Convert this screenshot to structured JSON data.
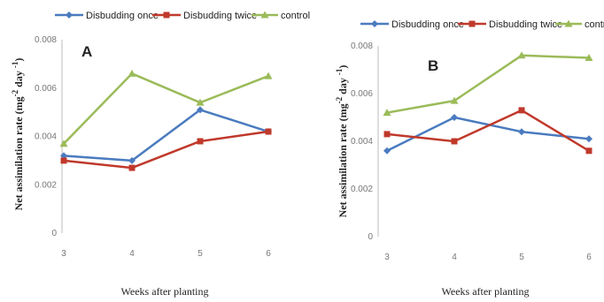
{
  "chart_data": [
    {
      "type": "line",
      "panel_label": "A",
      "categories": [
        "3",
        "4",
        "5",
        "6"
      ],
      "ylim": [
        0,
        0.008
      ],
      "yticks": [
        "0",
        "0.002",
        "0.004",
        "0.006",
        "0.008"
      ],
      "xlabel": "Weeks after planting",
      "ylabel_parts": [
        "Net assimilation rate (mg",
        "-2",
        " day ",
        "-1",
        ")"
      ],
      "legend_position": "top",
      "grid": false,
      "series": [
        {
          "name": "Disbudding once",
          "color": "#4a7bbf",
          "marker": "diamond",
          "values": [
            0.0032,
            0.003,
            0.0051,
            0.0042
          ]
        },
        {
          "name": "Disbudding twice",
          "color": "#c0392b",
          "marker": "square",
          "values": [
            0.003,
            0.0027,
            0.0038,
            0.0042
          ]
        },
        {
          "name": "control",
          "color": "#9bbb59",
          "marker": "triangle",
          "values": [
            0.0037,
            0.0066,
            0.0054,
            0.0065
          ]
        }
      ]
    },
    {
      "type": "line",
      "panel_label": "B",
      "categories": [
        "3",
        "4",
        "5",
        "6"
      ],
      "ylim": [
        0,
        0.008
      ],
      "yticks": [
        "0",
        "0.002",
        "0.004",
        "0.006",
        "0.008"
      ],
      "xlabel": "Weeks after planting",
      "ylabel_parts": [
        "Net assimilation rate (mg",
        "-2",
        " day ",
        "-1",
        ")"
      ],
      "legend_position": "top",
      "grid": false,
      "series": [
        {
          "name": "Disbudding once",
          "color": "#4a7bbf",
          "marker": "diamond",
          "values": [
            0.0036,
            0.005,
            0.0044,
            0.0041
          ]
        },
        {
          "name": "Disbudding twice",
          "color": "#c0392b",
          "marker": "square",
          "values": [
            0.0043,
            0.004,
            0.0053,
            0.0036
          ]
        },
        {
          "name": "control",
          "color": "#9bbb59",
          "marker": "triangle",
          "values": [
            0.0052,
            0.0057,
            0.0076,
            0.0075
          ]
        }
      ]
    }
  ]
}
